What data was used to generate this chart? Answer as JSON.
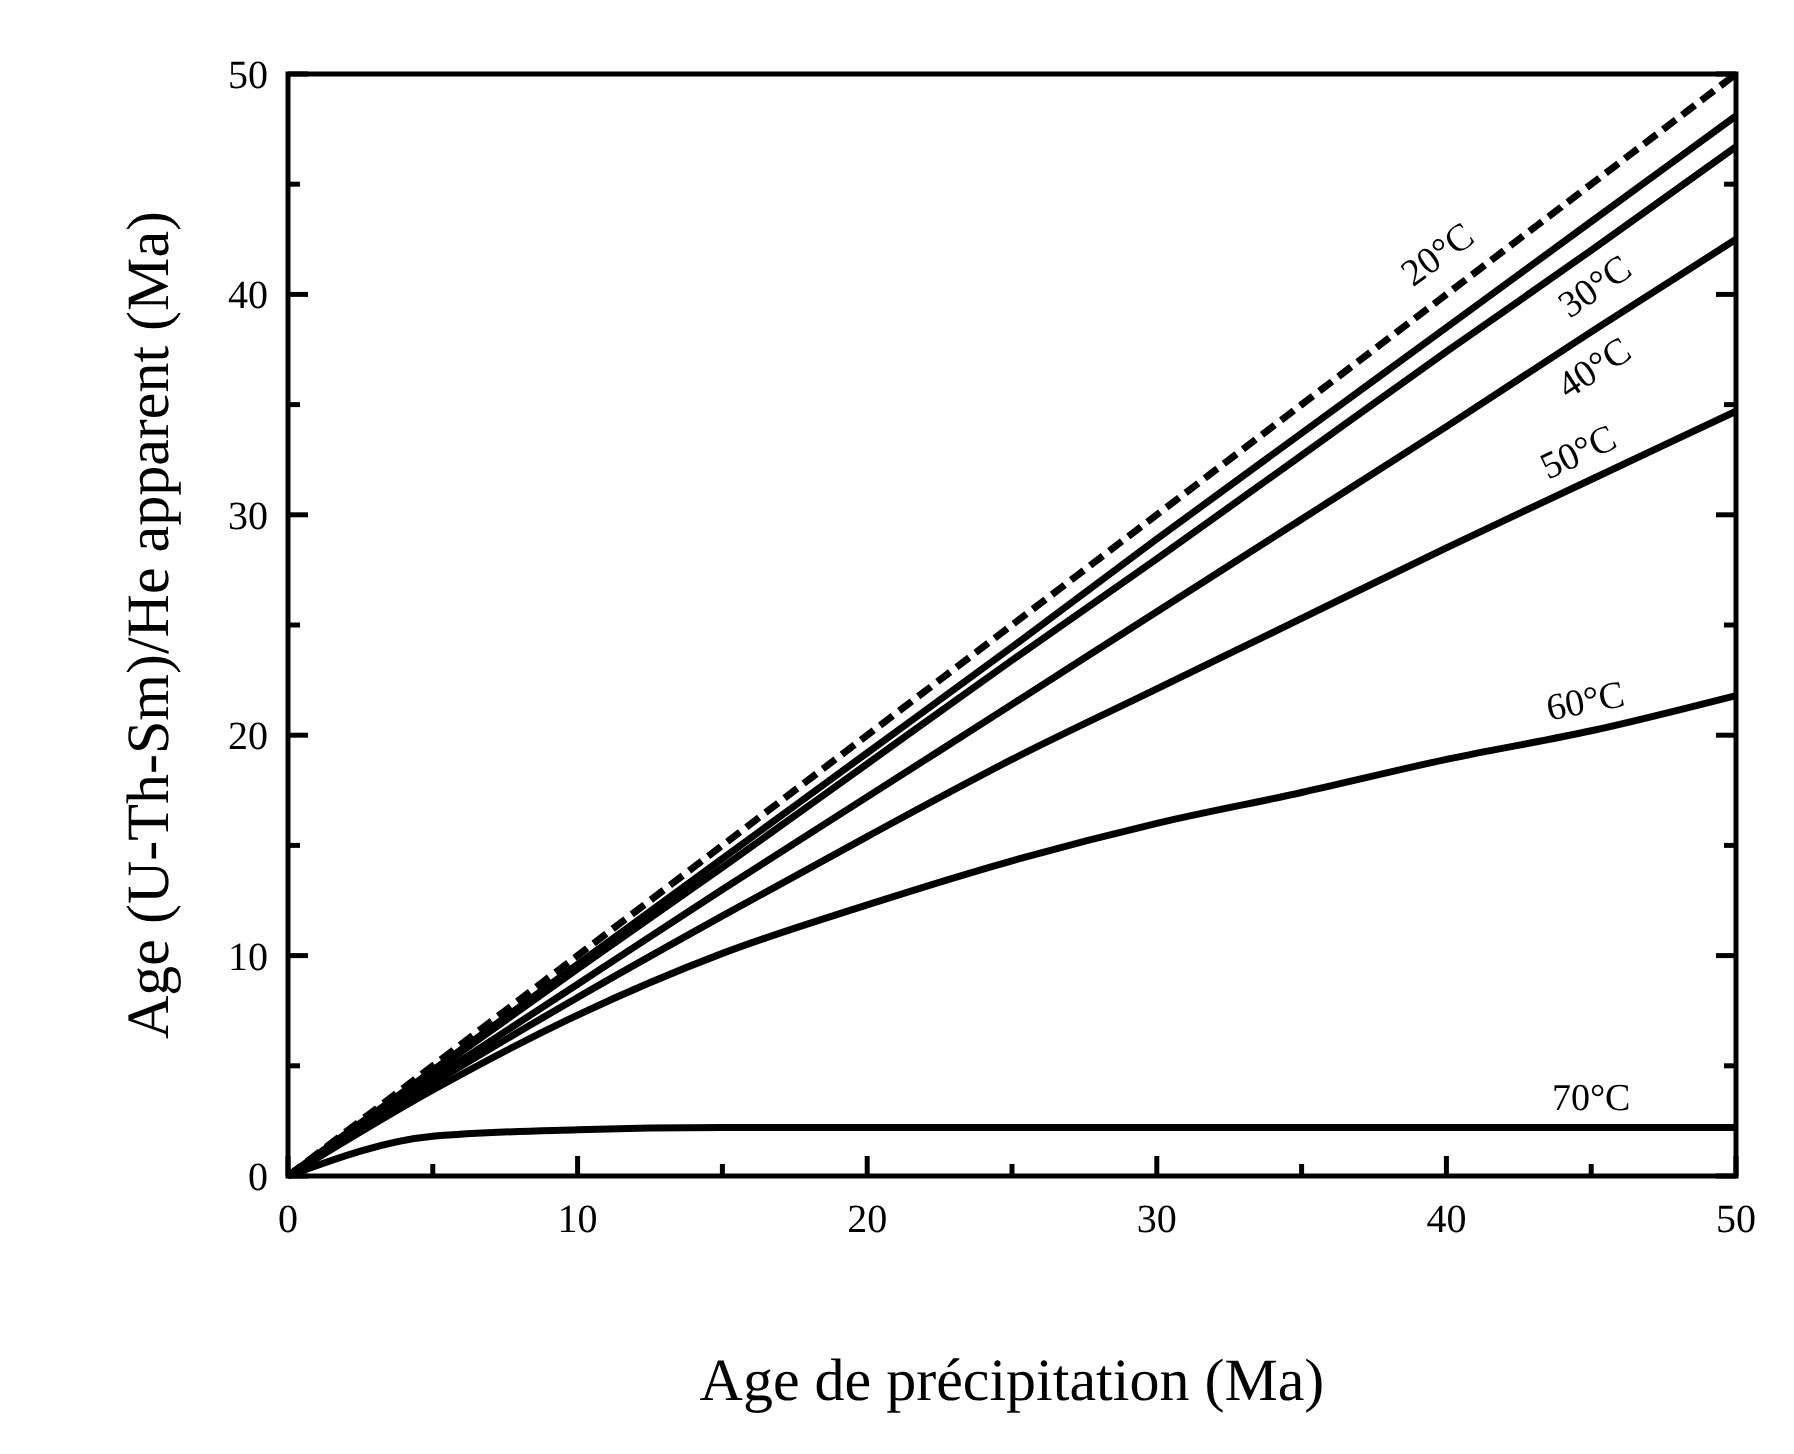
{
  "chart_data": {
    "type": "line",
    "xlabel": "Age de précipitation (Ma)",
    "ylabel": "Age (U-Th-Sm)/He apparent (Ma)",
    "x": [
      0,
      5,
      10,
      15,
      20,
      25,
      30,
      35,
      40,
      45,
      50
    ],
    "xlim": [
      0,
      50
    ],
    "ylim": [
      0,
      50
    ],
    "xticks": [
      0,
      {
        "value": 5,
        "label": null
      },
      10,
      {
        "value": 15,
        "label": null
      },
      20,
      {
        "value": 25,
        "label": null
      },
      30,
      {
        "value": 35,
        "label": null
      },
      40,
      {
        "value": 45,
        "label": null
      },
      50
    ],
    "yticks": [
      0,
      {
        "value": 5,
        "label": null
      },
      10,
      {
        "value": 15,
        "label": null
      },
      20,
      {
        "value": 25,
        "label": null
      },
      30,
      {
        "value": 35,
        "label": null
      },
      40,
      {
        "value": 45,
        "label": null
      },
      50
    ],
    "grid": false,
    "marker": "none",
    "series": [
      {
        "color": "#000000",
        "line_style": "dashed",
        "values": [
          0,
          5,
          10,
          15,
          20,
          25,
          30,
          35,
          40,
          45,
          50
        ]
      },
      {
        "name": "20°C",
        "color": "#000000",
        "values": [
          0,
          4.8,
          9.6,
          14.4,
          19.2,
          24.0,
          28.9,
          33.7,
          38.5,
          43.3,
          48.1
        ]
      },
      {
        "name": "30°C",
        "color": "#000000",
        "values": [
          0,
          4.7,
          9.4,
          14.0,
          18.7,
          23.4,
          28.0,
          32.7,
          37.4,
          42.0,
          46.7
        ]
      },
      {
        "name": "40°C",
        "color": "#000000",
        "values": [
          0,
          4.4,
          8.7,
          13.0,
          17.2,
          21.4,
          25.6,
          29.8,
          34.0,
          38.3,
          42.5
        ]
      },
      {
        "name": "50°C",
        "color": "#000000",
        "values": [
          0,
          4.2,
          8.1,
          11.8,
          15.4,
          18.9,
          22.1,
          25.3,
          28.5,
          31.6,
          34.7
        ]
      },
      {
        "name": "60°C",
        "color": "#000000",
        "values": [
          0,
          3.9,
          7.3,
          10.1,
          12.3,
          14.3,
          16.0,
          17.4,
          18.9,
          20.2,
          21.8
        ]
      },
      {
        "name": "70°C",
        "color": "#000000",
        "values": [
          0,
          1.8,
          2.1,
          2.2,
          2.2,
          2.2,
          2.2,
          2.2,
          2.2,
          2.2,
          2.2
        ]
      }
    ]
  }
}
